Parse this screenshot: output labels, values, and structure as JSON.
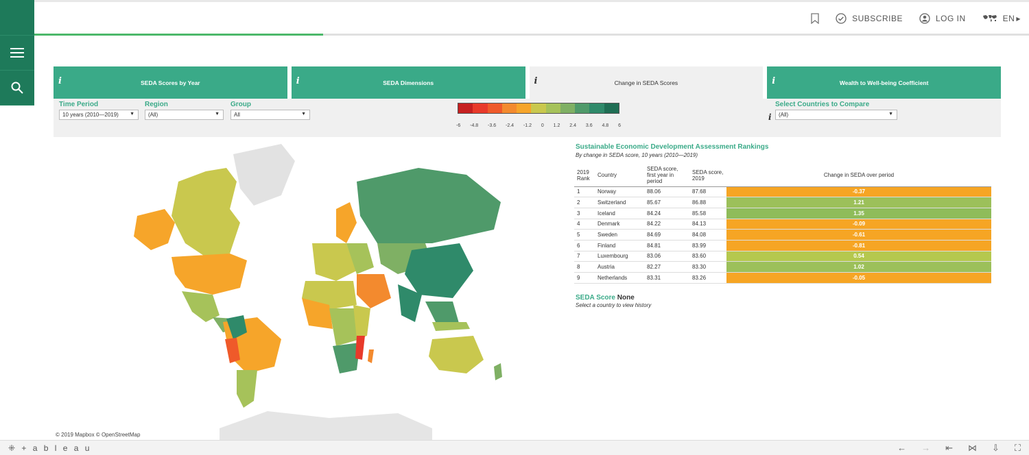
{
  "topbar": {
    "subscribe": "SUBSCRIBE",
    "login": "LOG IN",
    "lang": "EN",
    "progress_fraction": 0.29
  },
  "tabs": [
    {
      "label": "SEDA Scores by Year",
      "info": "i",
      "active": false
    },
    {
      "label": "SEDA Dimensions",
      "info": "i",
      "active": false
    },
    {
      "label": "Change in SEDA Scores",
      "info": "i",
      "active": true
    },
    {
      "label": "Wealth to Well-being Coefficient",
      "info": "i",
      "active": false
    }
  ],
  "filters": {
    "time_period": {
      "label": "Time Period",
      "value": "10 years (2010—2019)"
    },
    "region": {
      "label": "Region",
      "value": "(All)"
    },
    "group": {
      "label": "Group",
      "value": "All"
    },
    "compare": {
      "label": "Select Countries to Compare",
      "value": "(All)",
      "info": "i"
    }
  },
  "legend": {
    "colors": [
      "#c62020",
      "#e83a2a",
      "#ef5a2a",
      "#f38a2e",
      "#f6a52a",
      "#c9c84e",
      "#a6c25a",
      "#7fb064",
      "#4f9a6a",
      "#2f8a6a",
      "#1f6e54"
    ],
    "ticks": [
      "-6",
      "-4.8",
      "-3.6",
      "-2.4",
      "-1.2",
      "0",
      "1.2",
      "2.4",
      "3.6",
      "4.8",
      "6"
    ]
  },
  "map": {
    "attribution": "© 2019 Mapbox © OpenStreetMap"
  },
  "ranking": {
    "title": "Sustainable Economic Development Assessment Rankings",
    "subtitle": "By change in SEDA score, 10 years (2010—2019)",
    "headers": {
      "rank": "2019 Rank",
      "country": "Country",
      "first": "SEDA score, first year in period",
      "last": "SEDA score, 2019",
      "change": "Change in SEDA over period"
    },
    "rows": [
      {
        "rank": "1",
        "country": "Norway",
        "first": "88.06",
        "last": "87.68",
        "change": "-0.37",
        "color": "#f6a524"
      },
      {
        "rank": "2",
        "country": "Switzerland",
        "first": "85.67",
        "last": "86.88",
        "change": "1.21",
        "color": "#9cc05a"
      },
      {
        "rank": "3",
        "country": "Iceland",
        "first": "84.24",
        "last": "85.58",
        "change": "1.35",
        "color": "#8fbc5a"
      },
      {
        "rank": "4",
        "country": "Denmark",
        "first": "84.22",
        "last": "84.13",
        "change": "-0.09",
        "color": "#f6a524"
      },
      {
        "rank": "5",
        "country": "Sweden",
        "first": "84.69",
        "last": "84.08",
        "change": "-0.61",
        "color": "#f6a524"
      },
      {
        "rank": "6",
        "country": "Finland",
        "first": "84.81",
        "last": "83.99",
        "change": "-0.81",
        "color": "#f6a524"
      },
      {
        "rank": "7",
        "country": "Luxembourg",
        "first": "83.06",
        "last": "83.60",
        "change": "0.54",
        "color": "#b5c84e"
      },
      {
        "rank": "8",
        "country": "Austria",
        "first": "82.27",
        "last": "83.30",
        "change": "1.02",
        "color": "#9cc05a"
      },
      {
        "rank": "9",
        "country": "Netherlands",
        "first": "83.31",
        "last": "83.26",
        "change": "-0.05",
        "color": "#f6a524"
      }
    ]
  },
  "score": {
    "label": "SEDA Score",
    "value": "None",
    "hint": "Select a country to view history"
  },
  "bottombar": {
    "logo": "+ a b l e a u"
  }
}
